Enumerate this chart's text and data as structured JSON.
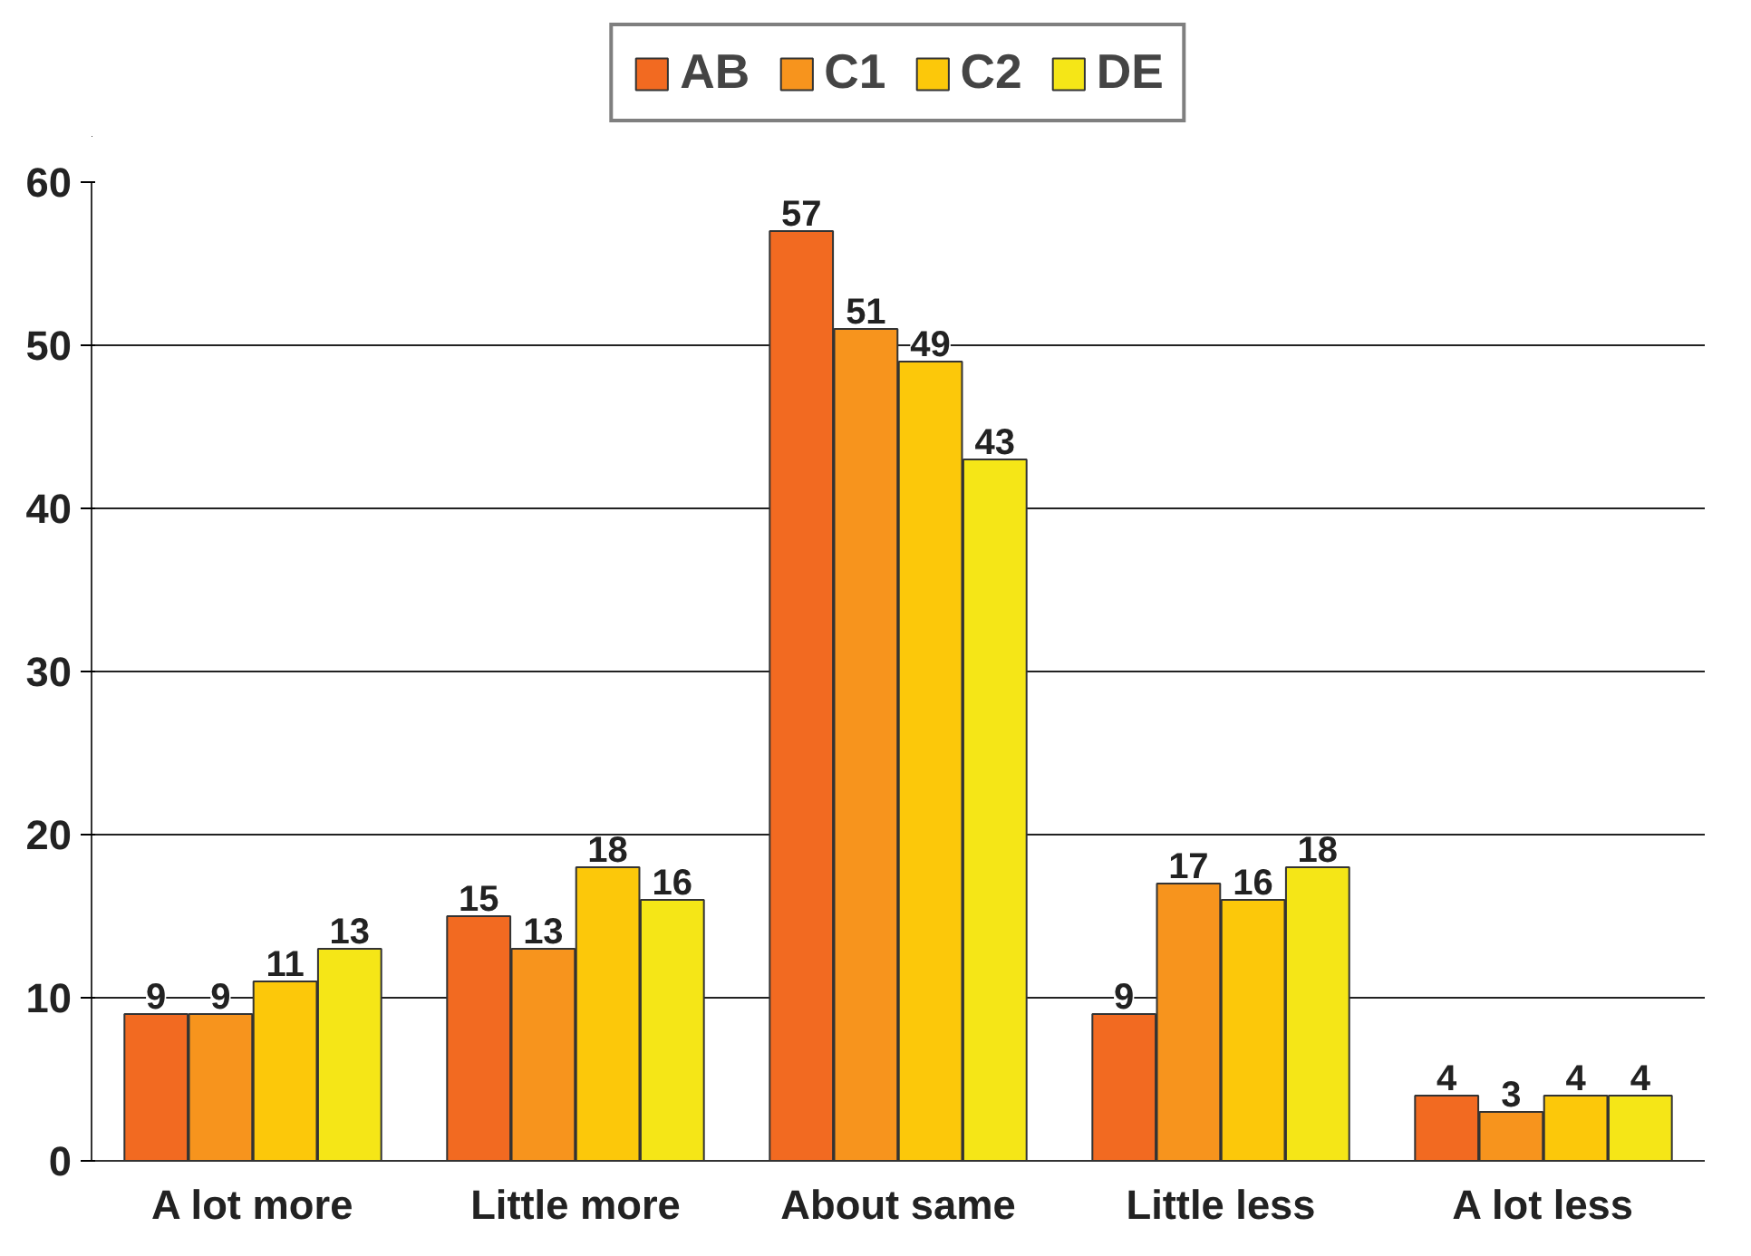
{
  "chart_data": {
    "type": "bar",
    "categories": [
      "A lot more",
      "Little more",
      "About same",
      "Little less",
      "A lot less"
    ],
    "series": [
      {
        "name": "AB",
        "color": "#f26a21",
        "values": [
          9,
          15,
          57,
          9,
          4
        ]
      },
      {
        "name": "C1",
        "color": "#f7941d",
        "values": [
          9,
          13,
          51,
          17,
          3
        ]
      },
      {
        "name": "C2",
        "color": "#fcc80a",
        "values": [
          11,
          18,
          49,
          16,
          4
        ]
      },
      {
        "name": "DE",
        "color": "#f5e617",
        "values": [
          13,
          16,
          43,
          18,
          4
        ]
      }
    ],
    "ylim": [
      0,
      60
    ],
    "yticks": [
      0,
      10,
      20,
      30,
      40,
      50,
      60
    ],
    "grid": "y",
    "legend": "top",
    "data_labels": true
  }
}
